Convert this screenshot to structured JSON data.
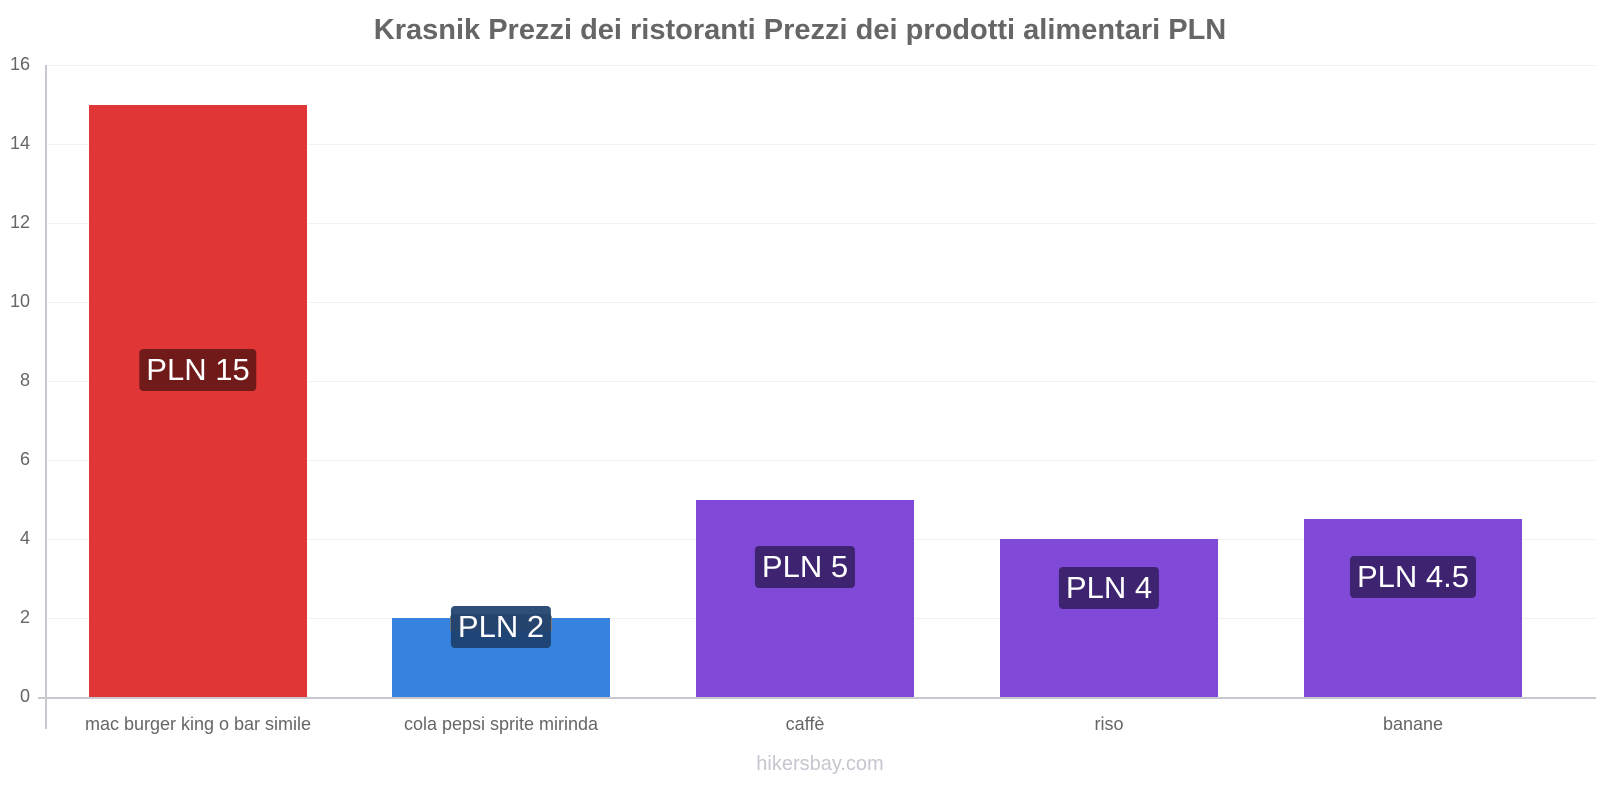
{
  "chart_data": {
    "type": "bar",
    "title": "Krasnik Prezzi dei ristoranti Prezzi dei prodotti alimentari PLN",
    "categories": [
      "mac burger king o bar simile",
      "cola pepsi sprite mirinda",
      "caffè",
      "riso",
      "banane"
    ],
    "values": [
      15,
      2,
      5,
      4,
      4.5
    ],
    "value_labels": [
      "PLN 15",
      "PLN 2",
      "PLN 5",
      "PLN 4",
      "PLN 4.5"
    ],
    "bar_colors": [
      "#e03636",
      "#3583de",
      "#8049d8",
      "#8049d8",
      "#8049d8"
    ],
    "label_bg_colors": [
      "#711a1a",
      "#1d3f6d",
      "#3e2470",
      "#3e2470",
      "#3e2470"
    ],
    "xlabel": "",
    "ylabel": "",
    "ylim": [
      0,
      16
    ],
    "yticks": [
      0,
      2,
      4,
      6,
      8,
      10,
      12,
      14,
      16
    ],
    "grid": true,
    "legend": "none"
  },
  "watermark": "hikersbay.com"
}
